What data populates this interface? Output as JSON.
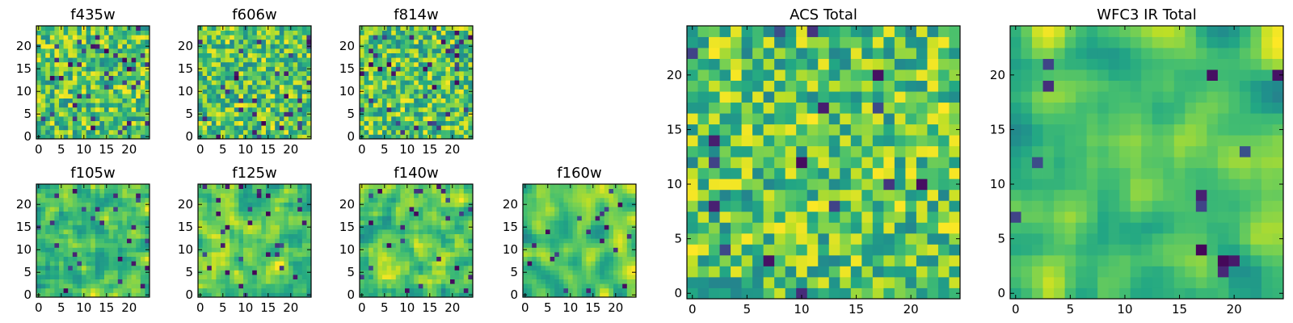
{
  "chart_data": [
    {
      "type": "heatmap",
      "title": "f435w",
      "colormap": "viridis",
      "grid_size": 25,
      "xlim": [
        0,
        24
      ],
      "ylim": [
        0,
        24
      ],
      "xticks": [
        "0",
        "5",
        "10",
        "15",
        "20"
      ],
      "yticks": [
        "0",
        "5",
        "10",
        "15",
        "20"
      ],
      "seed": 11,
      "smooth": 0,
      "dark_frac": 0.06
    },
    {
      "type": "heatmap",
      "title": "f606w",
      "colormap": "viridis",
      "grid_size": 25,
      "xlim": [
        0,
        24
      ],
      "ylim": [
        0,
        24
      ],
      "xticks": [
        "0",
        "5",
        "10",
        "15",
        "20"
      ],
      "yticks": [
        "0",
        "5",
        "10",
        "15",
        "20"
      ],
      "seed": 23,
      "smooth": 0,
      "dark_frac": 0.05
    },
    {
      "type": "heatmap",
      "title": "f814w",
      "colormap": "viridis",
      "grid_size": 25,
      "xlim": [
        0,
        24
      ],
      "ylim": [
        0,
        24
      ],
      "xticks": [
        "0",
        "5",
        "10",
        "15",
        "20"
      ],
      "yticks": [
        "0",
        "5",
        "10",
        "15",
        "20"
      ],
      "seed": 37,
      "smooth": 0,
      "dark_frac": 0.06
    },
    {
      "type": "heatmap",
      "title": "f105w",
      "colormap": "viridis",
      "grid_size": 25,
      "xlim": [
        0,
        24
      ],
      "ylim": [
        0,
        24
      ],
      "xticks": [
        "0",
        "5",
        "10",
        "15",
        "20"
      ],
      "yticks": [
        "0",
        "5",
        "10",
        "15",
        "20"
      ],
      "seed": 41,
      "smooth": 1,
      "dark_frac": 0.04
    },
    {
      "type": "heatmap",
      "title": "f125w",
      "colormap": "viridis",
      "grid_size": 25,
      "xlim": [
        0,
        24
      ],
      "ylim": [
        0,
        24
      ],
      "xticks": [
        "0",
        "5",
        "10",
        "15",
        "20"
      ],
      "yticks": [
        "0",
        "5",
        "10",
        "15",
        "20"
      ],
      "seed": 53,
      "smooth": 1,
      "dark_frac": 0.05
    },
    {
      "type": "heatmap",
      "title": "f140w",
      "colormap": "viridis",
      "grid_size": 25,
      "xlim": [
        0,
        24
      ],
      "ylim": [
        0,
        24
      ],
      "xticks": [
        "0",
        "5",
        "10",
        "15",
        "20"
      ],
      "yticks": [
        "0",
        "5",
        "10",
        "15",
        "20"
      ],
      "seed": 67,
      "smooth": 1,
      "dark_frac": 0.04
    },
    {
      "type": "heatmap",
      "title": "f160w",
      "colormap": "viridis",
      "grid_size": 25,
      "xlim": [
        0,
        24
      ],
      "ylim": [
        0,
        24
      ],
      "xticks": [
        "0",
        "5",
        "10",
        "15",
        "20"
      ],
      "yticks": [
        "0",
        "5",
        "10",
        "15",
        "20"
      ],
      "seed": 79,
      "smooth": 2,
      "dark_frac": 0.03
    },
    {
      "type": "heatmap",
      "title": "ACS Total",
      "colormap": "viridis",
      "grid_size": 25,
      "xlim": [
        0,
        24
      ],
      "ylim": [
        0,
        24
      ],
      "xticks": [
        "0",
        "5",
        "10",
        "15",
        "20"
      ],
      "yticks": [
        "0",
        "5",
        "10",
        "15",
        "20"
      ],
      "seed": 97,
      "smooth": 0,
      "dark_frac": 0.025
    },
    {
      "type": "heatmap",
      "title": "WFC3 IR Total",
      "colormap": "viridis",
      "grid_size": 25,
      "xlim": [
        0,
        24
      ],
      "ylim": [
        0,
        24
      ],
      "xticks": [
        "0",
        "5",
        "10",
        "15",
        "20"
      ],
      "yticks": [
        "0",
        "5",
        "10",
        "15",
        "20"
      ],
      "seed": 113,
      "smooth": 2,
      "dark_frac": 0.02
    }
  ]
}
